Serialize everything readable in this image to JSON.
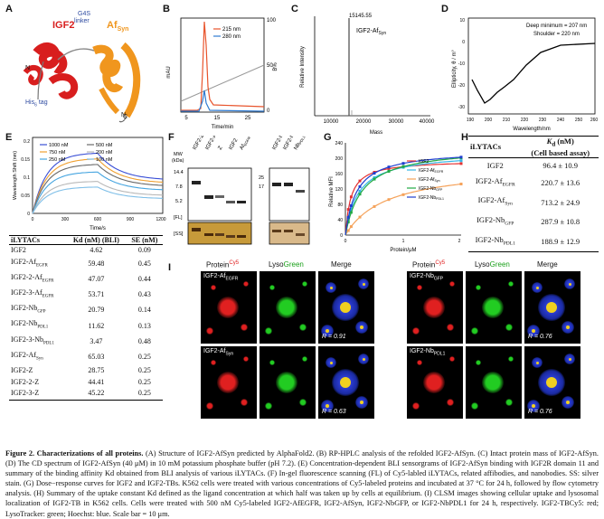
{
  "panels": {
    "A": {
      "label": "A",
      "igf2": "IGF2",
      "linker": "G4S",
      "linker2": "linker",
      "afsyn": "Af",
      "afsyn_sub": "Syn",
      "his": "His",
      "his_sub": "6",
      "his_tag": "tag",
      "n": "N",
      "c": "C"
    },
    "B": {
      "label": "B",
      "legend": [
        "215 nm",
        "280 nm"
      ],
      "ylabel": "mAU",
      "ylabel2": "B%",
      "xlabel": "Time/min"
    },
    "C": {
      "label": "C",
      "peak": "15145.55",
      "name": "IGF2-Af",
      "name_sub": "Syn",
      "ylabel": "Relative Intensity",
      "xlabel": "Mass"
    },
    "D": {
      "label": "D",
      "note1": "Deep minimum = 207 nm",
      "note2": "Shoulder = 220 nm",
      "ylabel": "Ellipticity, θ / m°",
      "xlabel": "Wavelength/nm"
    },
    "E": {
      "label": "E",
      "legend": [
        "1000 nM",
        "500 nM",
        "750 nM",
        "200 nM",
        "250 nM",
        "100 nM"
      ],
      "ylabel": "Wavelength Shift (nm)",
      "xlabel": "Time/s"
    },
    "F": {
      "label": "F",
      "mw": "MW",
      "kda": "(kDa)",
      "markers": [
        "14.4",
        "7.8",
        "5.2",
        "25",
        "17"
      ],
      "fl": "[FL]",
      "ss": "[SS]",
      "lanes1": [
        "IGF2-Z",
        "IGF2-Af",
        "Z",
        "IGF2",
        "Af"
      ],
      "lanes2": [
        "IGF2-Nb",
        "IGF2-Nb",
        "Nb"
      ]
    },
    "G": {
      "label": "G",
      "ylabel": "Relative MFI",
      "xlabel": "Protein/μM",
      "legend": [
        {
          "n": "IGF2",
          "s": ""
        },
        {
          "n": "IGF2-Af",
          "s": "EGFR"
        },
        {
          "n": "IGF2-Af",
          "s": "Syn"
        },
        {
          "n": "IGF2-Nb",
          "s": "GFP"
        },
        {
          "n": "IGF2-Nb",
          "s": "PDL1"
        }
      ]
    },
    "H": {
      "label": "H",
      "col1": "iLYTACs",
      "col2": "Kd (nM)",
      "col2b": "(Cell based assay)",
      "rows": [
        {
          "n": "IGF2",
          "s": "",
          "v": "96.4 ± 10.9"
        },
        {
          "n": "IGF2-Af",
          "s": "EGFR",
          "v": "220.7 ± 13.6"
        },
        {
          "n": "IGF2-Af",
          "s": "Syn",
          "v": "713.2 ± 24.9"
        },
        {
          "n": "IGF2-Nb",
          "s": "GFP",
          "v": "287.9 ± 10.8"
        },
        {
          "n": "IGF2-Nb",
          "s": "PDL1",
          "v": "188.9 ± 12.9"
        }
      ]
    },
    "Etable": {
      "col1": "iLYTACs",
      "col2": "Kd (nM) (BLI)",
      "col3": "SE (nM)",
      "rows": [
        {
          "n": "IGF2",
          "s": "",
          "v": "4.62",
          "e": "0.09"
        },
        {
          "n": "IGF2-Af",
          "s": "EGFR",
          "v": "59.48",
          "e": "0.45"
        },
        {
          "n": "IGF2-2-Af",
          "s": "EGFR",
          "v": "47.07",
          "e": "0.44"
        },
        {
          "n": "IGF2-3-Af",
          "s": "EGFR",
          "v": "53.71",
          "e": "0.43"
        },
        {
          "n": "IGF2-Nb",
          "s": "GFP",
          "v": "20.79",
          "e": "0.14"
        },
        {
          "n": "IGF2-Nb",
          "s": "PDL1",
          "v": "11.62",
          "e": "0.13"
        },
        {
          "n": "IGF2-3-Nb",
          "s": "PDL1",
          "v": "3.47",
          "e": "0.48"
        },
        {
          "n": "IGF2-Af",
          "s": "Syn",
          "v": "65.03",
          "e": "0.25"
        },
        {
          "n": "IGF2-Z",
          "s": "",
          "v": "28.75",
          "e": "0.25"
        },
        {
          "n": "IGF2-2-Z",
          "s": "",
          "v": "44.41",
          "e": "0.25"
        },
        {
          "n": "IGF2-3-Z",
          "s": "",
          "v": "45.22",
          "e": "0.25"
        }
      ]
    },
    "I": {
      "label": "I",
      "protein": "Protein",
      "cy5": "Cy5",
      "lyso": "Lyso",
      "green": "Green",
      "merge": "Merge",
      "rows": [
        {
          "n": "IGF2-Af",
          "s": "EGFR",
          "r": "R = 0.91"
        },
        {
          "n": "IGF2-Af",
          "s": "Syn",
          "r": "R = 0.63"
        },
        {
          "n": "IGF2-Nb",
          "s": "GFP",
          "r": "R = 0.76"
        },
        {
          "n": "IGF2-Nb",
          "s": "PDL1",
          "r": "R = 0.76"
        }
      ]
    }
  },
  "caption": {
    "lead": "Figure 2. Characterizations of all proteins.",
    "body": " (A) Structure of IGF2-AfSyn predicted by AlphaFold2. (B) RP-HPLC analysis of the refolded IGF2-AfSyn. (C) Intact protein mass of IGF2-AfSyn. (D) The CD spectrum of IGF2-AfSyn (40 μM) in 10 mM potassium phosphate buffer (pH 7.2). (E) Concentration-dependent BLI sensorgrams of IGF2-AfSyn binding with IGF2R domain 11 and summary of the binding affinity Kd obtained from BLI analysis of various iLYTACs. (F) In-gel fluorescence scanning (FL) of Cy5-labled iLYTACs, related affibodies, and nanobodies. SS: silver stain. (G) Dose−response curves for IGF2 and IGF2-TBs. K562 cells were treated with various concentrations of Cy5-labeled proteins and incubated at 37 °C for 24 h, followed by flow cytometry analysis. (H) Summary of the uptake constant Kd defined as the ligand concentration at which half was taken up by cells at equilibrium. (I) CLSM images showing cellular uptake and lysosomal localization of IGF2-TB in K562 cells. Cells were treated with 500 nM Cy5-labeled IGF2-AfEGFR, IGF2-AfSyn, IGF2-NbGFP, or IGF2-NbPDL1 for 24 h, respectively. IGF2-TBCy5: red; LysoTracker: green; Hoechst: blue. Scale bar = 10 μm."
  },
  "chart_data": [
    {
      "type": "line",
      "panel": "B",
      "xlabel": "Time/min",
      "ylabel": "mAU",
      "x_ticks": [
        5,
        15,
        25
      ],
      "y2_ticks": [
        0,
        50,
        100
      ],
      "series": [
        {
          "name": "215 nm",
          "color": "#e8542c"
        },
        {
          "name": "280 nm",
          "color": "#2e7ad1"
        }
      ]
    },
    {
      "type": "bar",
      "panel": "C",
      "xlabel": "Mass",
      "ylabel": "Relative Intensity",
      "x_ticks": [
        10000,
        20000,
        30000,
        40000
      ],
      "peak_mass": 15145.55
    },
    {
      "type": "line",
      "panel": "D",
      "xlabel": "Wavelength/nm",
      "ylabel": "Ellipticity, θ / m°",
      "x_ticks": [
        190,
        200,
        210,
        220,
        230,
        240,
        250,
        260
      ],
      "y_ticks": [
        -30,
        -20,
        -10,
        0,
        10
      ]
    },
    {
      "type": "line",
      "panel": "E",
      "xlabel": "Time/s",
      "ylabel": "Wavelength Shift (nm)",
      "x_ticks": [
        0,
        300,
        600,
        900,
        1200
      ],
      "y_ticks": [
        0,
        0.05,
        0.1,
        0.15,
        0.2
      ],
      "series": [
        {
          "name": "1000 nM",
          "color": "#3a4fd6"
        },
        {
          "name": "750 nM",
          "color": "#f0a030"
        },
        {
          "name": "500 nM",
          "color": "#6a6a6a"
        },
        {
          "name": "250 nM",
          "color": "#46a5e0"
        },
        {
          "name": "200 nM",
          "color": "#b8b8b8"
        },
        {
          "name": "100 nM",
          "color": "#7fbfe8"
        }
      ]
    },
    {
      "type": "line",
      "panel": "G",
      "xlabel": "Protein/μM",
      "ylabel": "Relative MFI",
      "x_ticks": [
        0,
        1,
        2
      ],
      "y_ticks": [
        0,
        40,
        80,
        120,
        160,
        200,
        240
      ],
      "series": [
        {
          "name": "IGF2",
          "color": "#e53030"
        },
        {
          "name": "IGF2-AfEGFR",
          "color": "#35b5e5"
        },
        {
          "name": "IGF2-AfSyn",
          "color": "#f5a25a"
        },
        {
          "name": "IGF2-NbGFP",
          "color": "#22aa44"
        },
        {
          "name": "IGF2-NbPDL1",
          "color": "#1f3fcf"
        }
      ]
    }
  ]
}
